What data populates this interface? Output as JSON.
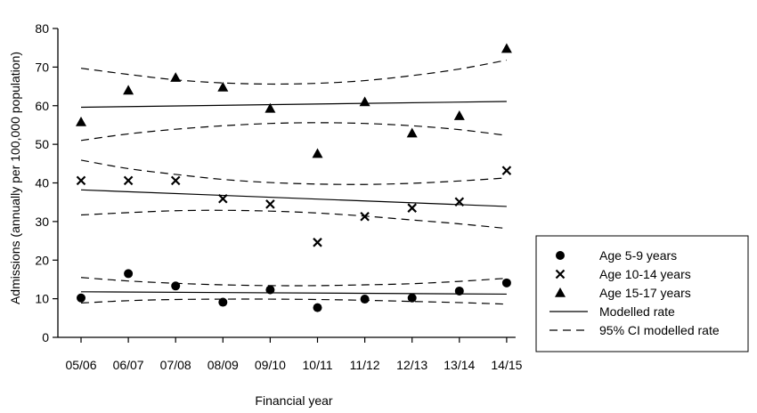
{
  "chart_data": {
    "type": "scatter",
    "title": "",
    "xlabel": "Financial year",
    "ylabel": "Admissions (annually per 100,000 population)",
    "categories": [
      "05/06",
      "06/07",
      "07/08",
      "08/09",
      "09/10",
      "10/11",
      "11/12",
      "12/13",
      "13/14",
      "14/15"
    ],
    "ylim": [
      0,
      80
    ],
    "yticks": [
      0,
      10,
      20,
      30,
      40,
      50,
      60,
      70,
      80
    ],
    "grid": false,
    "legend_position": "right",
    "series": [
      {
        "name": "Age 5-9 years",
        "marker": "circle",
        "values": [
          10.2,
          16.5,
          13.3,
          9.1,
          12.3,
          7.7,
          9.9,
          10.2,
          12.0,
          14.1
        ]
      },
      {
        "name": "Age 10-14 years",
        "marker": "cross",
        "values": [
          40.6,
          40.6,
          40.6,
          35.9,
          34.5,
          24.6,
          31.3,
          33.5,
          35.1,
          43.2
        ]
      },
      {
        "name": "Age 15-17 years",
        "marker": "triangle",
        "values": [
          55.8,
          64.0,
          67.3,
          64.8,
          59.3,
          47.6,
          61.0,
          52.9,
          57.4,
          74.8
        ]
      }
    ],
    "model_lines": [
      {
        "group": "Age 5-9 years",
        "modelled": [
          11.8,
          11.2
        ],
        "ci_lower": [
          8.9,
          9.5,
          9.8,
          9.9,
          9.9,
          9.8,
          9.6,
          9.3,
          9.0,
          8.6
        ],
        "ci_upper": [
          15.5,
          14.6,
          14.0,
          13.6,
          13.4,
          13.4,
          13.6,
          13.9,
          14.5,
          15.3
        ]
      },
      {
        "group": "Age 10-14 years",
        "modelled": [
          38.2,
          33.9
        ],
        "ci_lower": [
          31.7,
          32.3,
          32.8,
          32.9,
          32.7,
          32.2,
          31.4,
          30.4,
          29.4,
          28.2
        ],
        "ci_upper": [
          45.9,
          43.7,
          42.2,
          40.9,
          40.1,
          39.7,
          39.6,
          39.9,
          40.5,
          41.3
        ]
      },
      {
        "group": "Age 15-17 years",
        "modelled": [
          59.6,
          61.1
        ],
        "ci_lower": [
          51.0,
          52.7,
          53.9,
          54.8,
          55.4,
          55.6,
          55.4,
          54.8,
          53.8,
          52.3
        ],
        "ci_upper": [
          69.7,
          68.1,
          66.7,
          65.9,
          65.6,
          65.8,
          66.5,
          67.8,
          69.5,
          71.8
        ]
      }
    ],
    "legend": [
      {
        "label": "Age 5-9 years",
        "symbol": "circle"
      },
      {
        "label": "Age 10-14 years",
        "symbol": "cross"
      },
      {
        "label": "Age 15-17 years",
        "symbol": "triangle"
      },
      {
        "label": "Modelled rate",
        "symbol": "solid-line"
      },
      {
        "label": "95% CI modelled rate",
        "symbol": "dashed-line"
      }
    ]
  }
}
